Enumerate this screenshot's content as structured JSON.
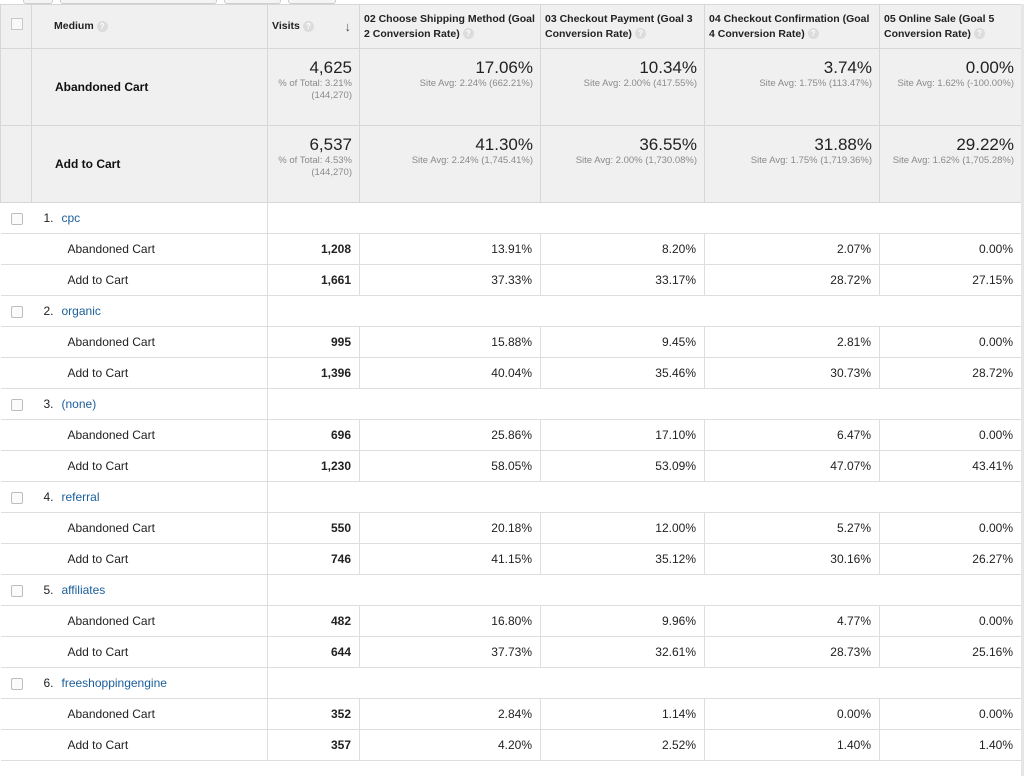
{
  "header": {
    "medium": "Medium",
    "visits": "Visits",
    "goal2": "02 Choose Shipping Method (Goal 2 Conversion Rate)",
    "goal3": "03 Checkout Payment (Goal 3 Conversion Rate)",
    "goal4": "04 Checkout Confirmation (Goal 4 Conversion Rate)",
    "goal5": "05 Online Sale (Goal 5 Conversion Rate)"
  },
  "summary": [
    {
      "label": "Abandoned Cart",
      "visits": "4,625",
      "visits_sub": "% of Total: 3.21% (144,270)",
      "goals": [
        {
          "value": "17.06%",
          "avg": "Site Avg: 2.24% (662.21%)"
        },
        {
          "value": "10.34%",
          "avg": "Site Avg: 2.00% (417.55%)"
        },
        {
          "value": "3.74%",
          "avg": "Site Avg: 1.75% (113.47%)"
        },
        {
          "value": "0.00%",
          "avg": "Site Avg: 1.62% (-100.00%)"
        }
      ]
    },
    {
      "label": "Add to Cart",
      "visits": "6,537",
      "visits_sub": "% of Total: 4.53% (144,270)",
      "goals": [
        {
          "value": "41.30%",
          "avg": "Site Avg: 2.24% (1,745.41%)"
        },
        {
          "value": "36.55%",
          "avg": "Site Avg: 2.00% (1,730.08%)"
        },
        {
          "value": "31.88%",
          "avg": "Site Avg: 1.75% (1,719.36%)"
        },
        {
          "value": "29.22%",
          "avg": "Site Avg: 1.62% (1,705.28%)"
        }
      ]
    }
  ],
  "groups": [
    {
      "index": "1.",
      "medium": "cpc",
      "rows": [
        {
          "label": "Abandoned Cart",
          "visits": "1,208",
          "g2": "13.91%",
          "g3": "8.20%",
          "g4": "2.07%",
          "g5": "0.00%"
        },
        {
          "label": "Add to Cart",
          "visits": "1,661",
          "g2": "37.33%",
          "g3": "33.17%",
          "g4": "28.72%",
          "g5": "27.15%"
        }
      ]
    },
    {
      "index": "2.",
      "medium": "organic",
      "rows": [
        {
          "label": "Abandoned Cart",
          "visits": "995",
          "g2": "15.88%",
          "g3": "9.45%",
          "g4": "2.81%",
          "g5": "0.00%"
        },
        {
          "label": "Add to Cart",
          "visits": "1,396",
          "g2": "40.04%",
          "g3": "35.46%",
          "g4": "30.73%",
          "g5": "28.72%"
        }
      ]
    },
    {
      "index": "3.",
      "medium": "(none)",
      "rows": [
        {
          "label": "Abandoned Cart",
          "visits": "696",
          "g2": "25.86%",
          "g3": "17.10%",
          "g4": "6.47%",
          "g5": "0.00%"
        },
        {
          "label": "Add to Cart",
          "visits": "1,230",
          "g2": "58.05%",
          "g3": "53.09%",
          "g4": "47.07%",
          "g5": "43.41%"
        }
      ]
    },
    {
      "index": "4.",
      "medium": "referral",
      "rows": [
        {
          "label": "Abandoned Cart",
          "visits": "550",
          "g2": "20.18%",
          "g3": "12.00%",
          "g4": "5.27%",
          "g5": "0.00%"
        },
        {
          "label": "Add to Cart",
          "visits": "746",
          "g2": "41.15%",
          "g3": "35.12%",
          "g4": "30.16%",
          "g5": "26.27%"
        }
      ]
    },
    {
      "index": "5.",
      "medium": "affiliates",
      "rows": [
        {
          "label": "Abandoned Cart",
          "visits": "482",
          "g2": "16.80%",
          "g3": "9.96%",
          "g4": "4.77%",
          "g5": "0.00%"
        },
        {
          "label": "Add to Cart",
          "visits": "644",
          "g2": "37.73%",
          "g3": "32.61%",
          "g4": "28.73%",
          "g5": "25.16%"
        }
      ]
    },
    {
      "index": "6.",
      "medium": "freeshoppingengine",
      "rows": [
        {
          "label": "Abandoned Cart",
          "visits": "352",
          "g2": "2.84%",
          "g3": "1.14%",
          "g4": "0.00%",
          "g5": "0.00%"
        },
        {
          "label": "Add to Cart",
          "visits": "357",
          "g2": "4.20%",
          "g3": "2.52%",
          "g4": "1.40%",
          "g5": "1.40%"
        }
      ]
    }
  ],
  "colors": {
    "link": "#1a5e9a",
    "header_bg": "#f0f0f0",
    "border": "#d7d7d7"
  },
  "icons": {
    "help": "question-mark-icon",
    "sort": "sort-descending-arrow-icon"
  }
}
